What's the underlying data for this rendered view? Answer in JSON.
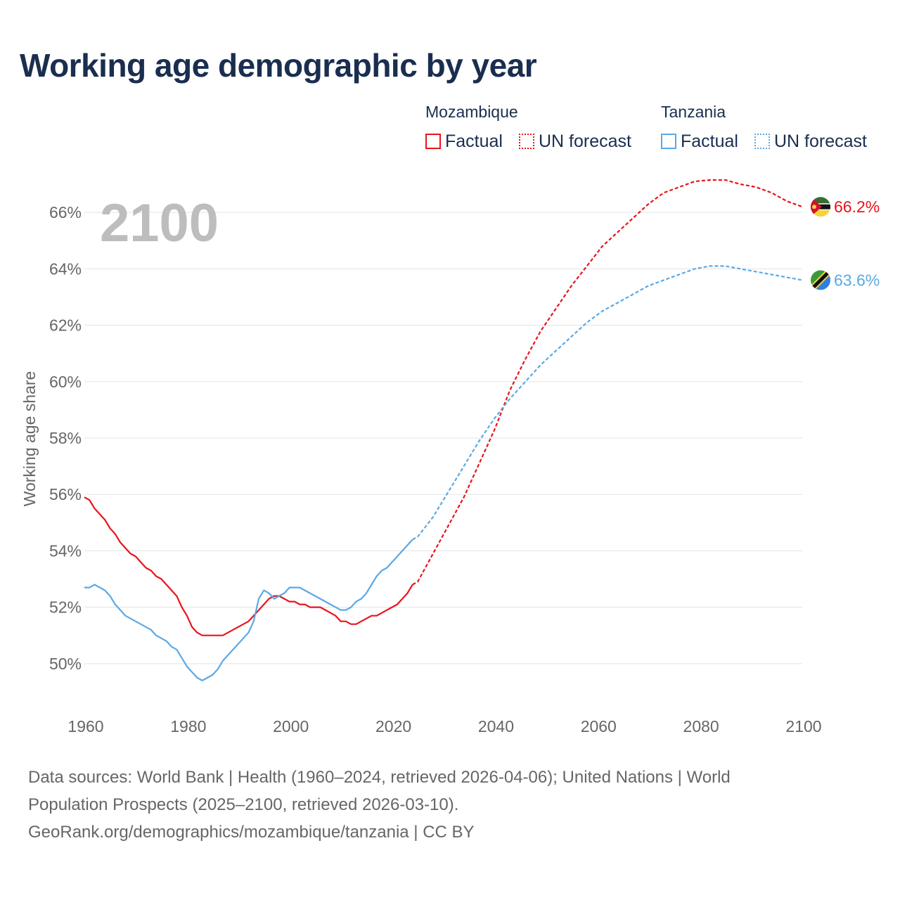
{
  "title": "Working age demographic by year",
  "year_watermark": "2100",
  "legend": {
    "groups": [
      {
        "name": "Mozambique",
        "color": "#e8141b",
        "items": [
          {
            "label": "Factual",
            "style": "solid"
          },
          {
            "label": "UN forecast",
            "style": "dotted"
          }
        ]
      },
      {
        "name": "Tanzania",
        "color": "#5aa9e6",
        "items": [
          {
            "label": "Factual",
            "style": "solid"
          },
          {
            "label": "UN forecast",
            "style": "dotted"
          }
        ]
      }
    ]
  },
  "sources": {
    "line1": "Data sources: World Bank | Health (1960–2024, retrieved 2026-04-06); United Nations | World",
    "line2": "Population Prospects (2025–2100, retrieved 2026-03-10).",
    "line3": "GeoRank.org/demographics/mozambique/tanzania | CC BY"
  },
  "chart_data": {
    "type": "line",
    "title": "Working age demographic by year",
    "xlabel": "",
    "ylabel": "Working age share",
    "xlim": [
      1960,
      2100
    ],
    "ylim": [
      48.5,
      67.5
    ],
    "x_ticks": [
      1960,
      1980,
      2000,
      2020,
      2040,
      2060,
      2080,
      2100
    ],
    "y_ticks": [
      50,
      52,
      54,
      56,
      58,
      60,
      62,
      64,
      66
    ],
    "y_tick_labels": [
      "50%",
      "52%",
      "54%",
      "56%",
      "58%",
      "60%",
      "62%",
      "64%",
      "66%"
    ],
    "grid": true,
    "series": [
      {
        "name": "Mozambique",
        "color": "#e8141b",
        "end_label": "66.2%",
        "end_value": 66.2,
        "flag": "mozambique-flag-icon",
        "factual": {
          "x": [
            1960,
            1961,
            1962,
            1963,
            1964,
            1965,
            1966,
            1967,
            1968,
            1969,
            1970,
            1971,
            1972,
            1973,
            1974,
            1975,
            1976,
            1977,
            1978,
            1979,
            1980,
            1981,
            1982,
            1983,
            1984,
            1985,
            1986,
            1987,
            1988,
            1989,
            1990,
            1991,
            1992,
            1993,
            1994,
            1995,
            1996,
            1997,
            1998,
            1999,
            2000,
            2001,
            2002,
            2003,
            2004,
            2005,
            2006,
            2007,
            2008,
            2009,
            2010,
            2011,
            2012,
            2013,
            2014,
            2015,
            2016,
            2017,
            2018,
            2019,
            2020,
            2021,
            2022,
            2023,
            2024
          ],
          "y": [
            55.9,
            55.8,
            55.5,
            55.3,
            55.1,
            54.8,
            54.6,
            54.3,
            54.1,
            53.9,
            53.8,
            53.6,
            53.4,
            53.3,
            53.1,
            53.0,
            52.8,
            52.6,
            52.4,
            52.0,
            51.7,
            51.3,
            51.1,
            51.0,
            51.0,
            51.0,
            51.0,
            51.0,
            51.1,
            51.2,
            51.3,
            51.4,
            51.5,
            51.7,
            51.9,
            52.1,
            52.3,
            52.4,
            52.4,
            52.3,
            52.2,
            52.2,
            52.1,
            52.1,
            52.0,
            52.0,
            52.0,
            51.9,
            51.8,
            51.7,
            51.5,
            51.5,
            51.4,
            51.4,
            51.5,
            51.6,
            51.7,
            51.7,
            51.8,
            51.9,
            52.0,
            52.1,
            52.3,
            52.5,
            52.8
          ]
        },
        "forecast": {
          "x": [
            2025,
            2028,
            2031,
            2034,
            2037,
            2040,
            2043,
            2046,
            2049,
            2052,
            2055,
            2058,
            2061,
            2064,
            2067,
            2070,
            2073,
            2076,
            2079,
            2082,
            2085,
            2088,
            2091,
            2094,
            2097,
            2100
          ],
          "y": [
            52.9,
            53.9,
            54.9,
            55.9,
            57.1,
            58.3,
            59.7,
            60.8,
            61.8,
            62.6,
            63.4,
            64.1,
            64.8,
            65.3,
            65.8,
            66.3,
            66.7,
            66.9,
            67.1,
            67.15,
            67.15,
            67.0,
            66.9,
            66.7,
            66.4,
            66.2
          ]
        }
      },
      {
        "name": "Tanzania",
        "color": "#5aa9e6",
        "end_label": "63.6%",
        "end_value": 63.6,
        "flag": "tanzania-flag-icon",
        "factual": {
          "x": [
            1960,
            1961,
            1962,
            1963,
            1964,
            1965,
            1966,
            1967,
            1968,
            1969,
            1970,
            1971,
            1972,
            1973,
            1974,
            1975,
            1976,
            1977,
            1978,
            1979,
            1980,
            1981,
            1982,
            1983,
            1984,
            1985,
            1986,
            1987,
            1988,
            1989,
            1990,
            1991,
            1992,
            1993,
            1994,
            1995,
            1996,
            1997,
            1998,
            1999,
            2000,
            2001,
            2002,
            2003,
            2004,
            2005,
            2006,
            2007,
            2008,
            2009,
            2010,
            2011,
            2012,
            2013,
            2014,
            2015,
            2016,
            2017,
            2018,
            2019,
            2020,
            2021,
            2022,
            2023,
            2024
          ],
          "y": [
            52.7,
            52.7,
            52.8,
            52.7,
            52.6,
            52.4,
            52.1,
            51.9,
            51.7,
            51.6,
            51.5,
            51.4,
            51.3,
            51.2,
            51.0,
            50.9,
            50.8,
            50.6,
            50.5,
            50.2,
            49.9,
            49.7,
            49.5,
            49.4,
            49.5,
            49.6,
            49.8,
            50.1,
            50.3,
            50.5,
            50.7,
            50.9,
            51.1,
            51.5,
            52.3,
            52.6,
            52.5,
            52.3,
            52.4,
            52.5,
            52.7,
            52.7,
            52.7,
            52.6,
            52.5,
            52.4,
            52.3,
            52.2,
            52.1,
            52.0,
            51.9,
            51.9,
            52.0,
            52.2,
            52.3,
            52.5,
            52.8,
            53.1,
            53.3,
            53.4,
            53.6,
            53.8,
            54.0,
            54.2,
            54.4
          ]
        },
        "forecast": {
          "x": [
            2025,
            2028,
            2031,
            2034,
            2037,
            2040,
            2043,
            2046,
            2049,
            2052,
            2055,
            2058,
            2061,
            2064,
            2067,
            2070,
            2073,
            2076,
            2079,
            2082,
            2085,
            2088,
            2091,
            2094,
            2097,
            2100
          ],
          "y": [
            54.5,
            55.2,
            56.1,
            57.0,
            57.9,
            58.7,
            59.4,
            60.0,
            60.6,
            61.1,
            61.6,
            62.1,
            62.5,
            62.8,
            63.1,
            63.4,
            63.6,
            63.8,
            64.0,
            64.1,
            64.1,
            64.0,
            63.9,
            63.8,
            63.7,
            63.6
          ]
        }
      }
    ]
  }
}
